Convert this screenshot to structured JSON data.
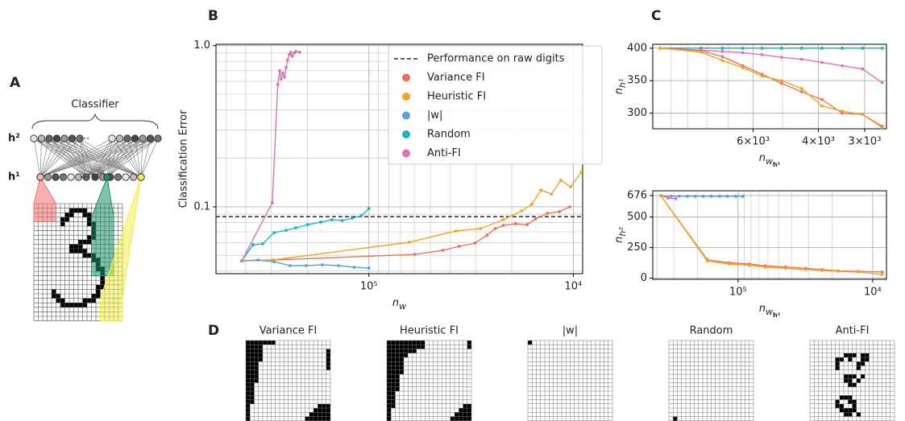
{
  "panel_labels": [
    "A",
    "B",
    "C",
    "D"
  ],
  "diagram": {
    "title": "Classifier",
    "layers": [
      "h¹",
      "h²"
    ],
    "ellipsis": "···"
  },
  "masks": {
    "titles": [
      "Variance FI",
      "Heuristic FI",
      "|w|",
      "Random",
      "Anti-FI"
    ]
  },
  "chart_data": [
    {
      "type": "line",
      "xscale": "log",
      "yscale": "log",
      "grid": true,
      "legend": "upper right",
      "ylabel": "Classification Error",
      "xlabel": {
        "base": "n",
        "sub": "w"
      },
      "xlim": [
        560000,
        9000
      ],
      "ylim": [
        0.0385,
        1.02
      ],
      "xticks": [
        {
          "value": 100000,
          "label": "10⁵"
        },
        {
          "value": 10000,
          "label": "10⁴"
        }
      ],
      "yticks": [
        {
          "value": 1,
          "label": "1.0"
        },
        0.1
      ],
      "xminor": [
        20000,
        30000,
        40000,
        50000,
        60000,
        70000,
        80000,
        90000,
        200000,
        300000,
        400000,
        500000
      ],
      "yminor": [
        0.04,
        0.05,
        0.06,
        0.07,
        0.08,
        0.09,
        0.2,
        0.3,
        0.4,
        0.5,
        0.6,
        0.7,
        0.8,
        0.9
      ],
      "hline": {
        "value": 0.087,
        "label": "Performance on raw digits",
        "color": "#000000"
      },
      "series": [
        {
          "name": "Variance FI",
          "color": "#e8735a",
          "x": [
            419000,
            297000,
            59700,
            43500,
            36200,
            30200,
            26400,
            24100,
            22000,
            19200,
            16800,
            15300,
            13400,
            11700,
            10400
          ],
          "values": [
            0.0462,
            0.0468,
            0.0507,
            0.0537,
            0.0569,
            0.0596,
            0.0668,
            0.0733,
            0.0767,
            0.0785,
            0.0776,
            0.0841,
            0.0912,
            0.0933,
            0.1
          ]
        },
        {
          "name": "Heuristic FI",
          "color": "#eea41e",
          "x": [
            419000,
            297000,
            63600,
            37600,
            28400,
            22000,
            17900,
            16000,
            14400,
            12800,
            11500,
            10300,
            9140
          ],
          "values": [
            0.0462,
            0.0468,
            0.0603,
            0.0708,
            0.0733,
            0.0832,
            0.0944,
            0.1035,
            0.127,
            0.12,
            0.146,
            0.133,
            0.164
          ]
        },
        {
          "name": "|w|",
          "color": "#5aa0dc",
          "x": [
            419000,
            349000,
            291000,
            243000,
            203000,
            169000,
            141000,
            118000,
            100000
          ],
          "values": [
            0.0462,
            0.0468,
            0.0457,
            0.0432,
            0.0432,
            0.0437,
            0.0432,
            0.0422,
            0.0417
          ]
        },
        {
          "name": "Random",
          "color": "#1bb5c1",
          "x": [
            419000,
            369000,
            331000,
            291000,
            254000,
            228000,
            199000,
            172000,
            152000,
            135000,
            121000,
            109000,
            100000
          ],
          "values": [
            0.0462,
            0.0582,
            0.0589,
            0.0692,
            0.0716,
            0.0741,
            0.0776,
            0.0804,
            0.0832,
            0.0822,
            0.0851,
            0.0881,
            0.0977
          ]
        },
        {
          "name": "Anti-FI",
          "color": "#d775b0",
          "x": [
            419000,
            297000,
            279000,
            273000,
            269000,
            264000,
            259000,
            254000,
            250000,
            245000,
            241000,
            237000,
            232000,
            228000,
            218000
          ],
          "values": [
            0.0462,
            0.106,
            0.575,
            0.7,
            0.62,
            0.676,
            0.638,
            0.733,
            0.813,
            0.88,
            0.91,
            0.86,
            0.9,
            0.92,
            0.91
          ]
        }
      ]
    },
    {
      "type": "line",
      "xscale": "log",
      "yscale": "linear",
      "grid": true,
      "ylabel": {
        "base": "n",
        "sub": "h¹"
      },
      "xlabel": {
        "base": "n",
        "sub": "w",
        "subsub": "h¹"
      },
      "xlim": [
        11200,
        2620
      ],
      "ylim": [
        276,
        406
      ],
      "xticks": [
        {
          "value": 6000,
          "label": "6×10³"
        },
        {
          "value": 4000,
          "label": "4×10³"
        },
        {
          "value": 3000,
          "label": "3×10³"
        }
      ],
      "yticks": [
        300,
        350,
        400
      ],
      "xminor": [
        5000,
        7000,
        8000,
        9000,
        10000
      ],
      "series": [
        {
          "color": "#5aa0dc",
          "x": [
            10700,
            8300,
            7260,
            6400,
            5680,
            5030,
            4440,
            3910,
            3450,
            3040,
            2690
          ],
          "values": [
            400,
            400,
            400,
            400,
            400,
            400,
            400,
            400,
            400,
            400,
            400
          ]
        },
        {
          "color": "#1bb5c1",
          "x": [
            10700,
            8300,
            7260,
            6400,
            5680,
            5030,
            4440,
            3910,
            3450,
            3040,
            2690
          ],
          "values": [
            400,
            400,
            400,
            400,
            400,
            400,
            400,
            400,
            400,
            400,
            400
          ]
        },
        {
          "color": "#d775b0",
          "x": [
            10700,
            8300,
            7260,
            6400,
            5680,
            5030,
            4440,
            3910,
            3450,
            3040,
            2690
          ],
          "values": [
            400,
            397,
            395,
            393,
            390,
            386,
            383,
            378,
            373,
            368,
            347
          ]
        },
        {
          "color": "#e8735a",
          "x": [
            10700,
            8300,
            7260,
            6400,
            5680,
            5030,
            4440,
            3910,
            3450,
            3040,
            2690
          ],
          "values": [
            400,
            396,
            387,
            373,
            360,
            346,
            333,
            321,
            300,
            298,
            280
          ]
        },
        {
          "color": "#eea41e",
          "x": [
            10700,
            8300,
            7260,
            6400,
            5680,
            5030,
            4440,
            3910,
            3450,
            3040,
            2690
          ],
          "values": [
            400,
            394,
            381,
            370,
            357,
            350,
            338,
            311,
            303,
            298,
            278
          ]
        }
      ]
    },
    {
      "type": "line",
      "xscale": "log",
      "yscale": "linear",
      "grid": true,
      "ylabel": {
        "base": "n",
        "sub": "h²"
      },
      "xlabel": {
        "base": "n",
        "sub": "w",
        "subsub": "h²"
      },
      "xlim": [
        430000,
        7900
      ],
      "ylim": [
        -10,
        715
      ],
      "xticks": [
        {
          "value": 100000,
          "label": "10⁵"
        },
        {
          "value": 10000,
          "label": "10⁴"
        }
      ],
      "yticks": [
        0,
        250,
        500,
        676
      ],
      "xminor": [
        20000,
        30000,
        40000,
        50000,
        60000,
        70000,
        80000,
        90000,
        200000,
        300000,
        400000
      ],
      "series": [
        {
          "color": "#5aa0dc",
          "x": [
            376000,
            314000,
            274000,
            238000,
            208000,
            181000,
            158000,
            137000,
            120000,
            104000,
            92000
          ],
          "values": [
            676,
            670,
            670,
            670,
            670,
            670,
            670,
            670,
            670,
            670,
            670
          ]
        },
        {
          "color": "#d775b0",
          "x": [
            376000,
            330000,
            290000
          ],
          "values": [
            676,
            655,
            650
          ]
        },
        {
          "color": "#e8735a",
          "x": [
            376000,
            169000,
            116000,
            82400,
            62600,
            44300,
            31400,
            23800,
            18100,
            12800,
            8500
          ],
          "values": [
            676,
            150,
            125,
            115,
            100,
            90,
            80,
            70,
            60,
            55,
            50
          ]
        },
        {
          "color": "#eea41e",
          "x": [
            376000,
            169000,
            116000,
            82400,
            62600,
            44300,
            31400,
            23800,
            18100,
            12800,
            8500
          ],
          "values": [
            676,
            140,
            115,
            105,
            90,
            80,
            70,
            62,
            55,
            50,
            30
          ]
        }
      ]
    }
  ]
}
